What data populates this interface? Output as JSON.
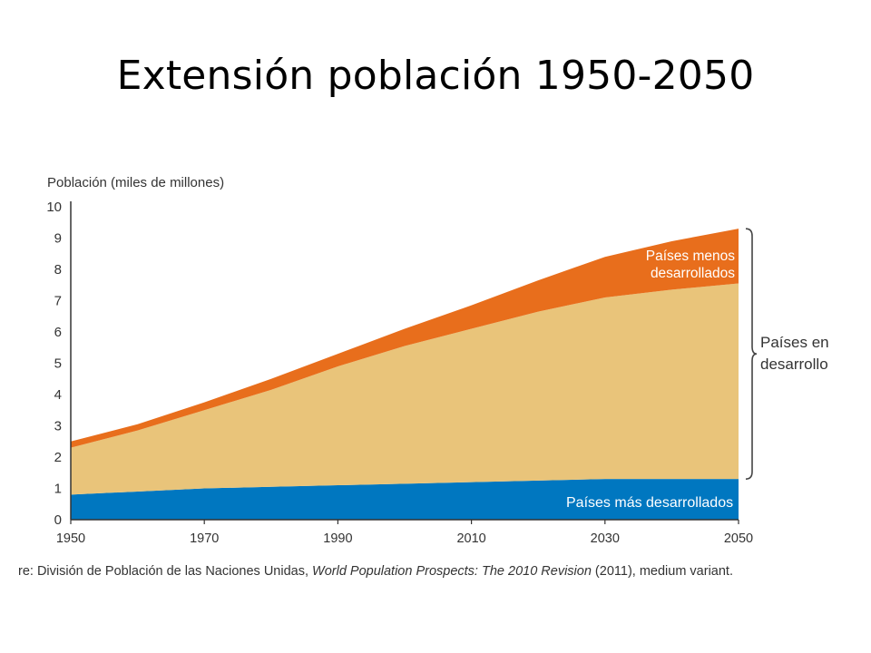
{
  "slide": {
    "title": "Extensión población 1950-2050"
  },
  "source_note": {
    "prefix": "re: División de Población de las Naciones Unidas, ",
    "title": "World Population Prospects: The 2010 Revision",
    "suffix": " (2011), medium variant."
  },
  "chart_data": {
    "type": "area",
    "stacked": true,
    "title": "",
    "ylabel": "Población (miles de millones)",
    "xlabel": "",
    "ylim": [
      0,
      10
    ],
    "xlim": [
      1950,
      2050
    ],
    "x_ticks": [
      "1950",
      "1970",
      "1990",
      "2010",
      "2030",
      "2050"
    ],
    "y_ticks": [
      "0",
      "1",
      "2",
      "3",
      "4",
      "5",
      "6",
      "7",
      "8",
      "9",
      "10"
    ],
    "x": [
      1950,
      1960,
      1970,
      1980,
      1990,
      2000,
      2010,
      2020,
      2030,
      2040,
      2050
    ],
    "series": [
      {
        "name": "Países más desarrollados",
        "color": "#0077c0",
        "values": [
          0.8,
          0.9,
          1.0,
          1.05,
          1.1,
          1.15,
          1.2,
          1.25,
          1.3,
          1.3,
          1.3
        ]
      },
      {
        "name": "",
        "color": "#e9c47a",
        "values": [
          1.5,
          1.95,
          2.5,
          3.1,
          3.8,
          4.4,
          4.9,
          5.4,
          5.8,
          6.05,
          6.25
        ]
      },
      {
        "name": "Países menos desarrollados",
        "color": "#e86e1c",
        "values": [
          0.2,
          0.2,
          0.25,
          0.35,
          0.4,
          0.55,
          0.75,
          1.0,
          1.3,
          1.55,
          1.75
        ]
      }
    ],
    "annotations": {
      "less_developed": [
        "Países menos",
        "desarrollados"
      ],
      "more_developed": "Países más desarrollados",
      "developing": [
        "Países en",
        "desarrollo"
      ]
    },
    "grid": false
  }
}
